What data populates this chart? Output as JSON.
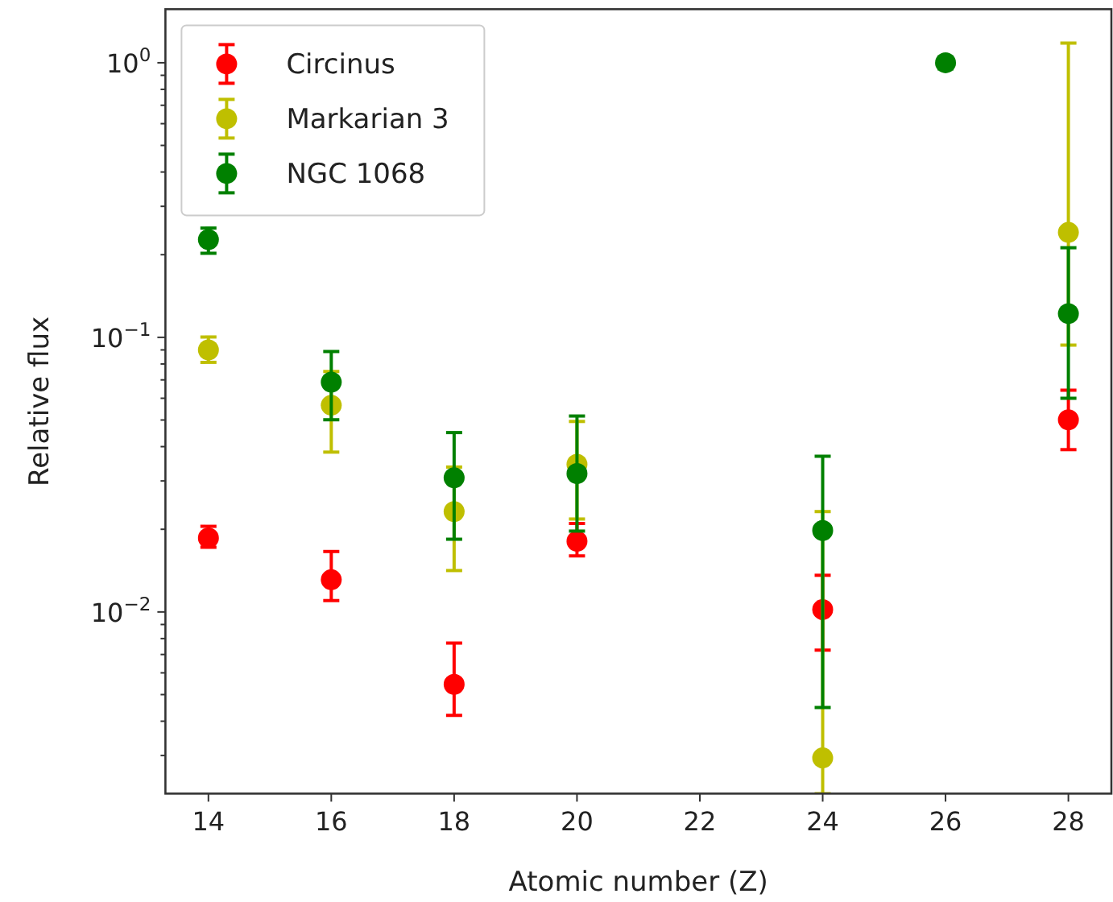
{
  "chart_data": {
    "type": "scatter",
    "xlabel": "Atomic number (Z)",
    "ylabel": "Relative flux",
    "x": [
      14,
      16,
      18,
      20,
      24,
      26,
      28
    ],
    "series": [
      {
        "name": "Circinus",
        "color": "#ff0000",
        "values": [
          0.0186,
          0.0131,
          0.00545,
          0.0181,
          0.0102,
          null,
          0.0501
        ],
        "errors": [
          [
            0.0172,
            0.0205
          ],
          [
            0.011,
            0.0166
          ],
          [
            0.0042,
            0.0077
          ],
          [
            0.016,
            0.021
          ],
          [
            0.00726,
            0.0136
          ],
          null,
          [
            0.039,
            0.0642
          ]
        ]
      },
      {
        "name": "Markarian 3",
        "color": "#bfbf00",
        "values": [
          0.09,
          0.0566,
          0.0232,
          0.0345,
          0.00294,
          null,
          0.241
        ],
        "errors": [
          [
            0.0811,
            0.1003
          ],
          [
            0.0382,
            0.0751
          ],
          [
            0.01415,
            0.0337
          ],
          [
            0.0218,
            0.0494
          ],
          [
            0.00218,
            0.0232
          ],
          null,
          [
            0.0937,
            1.18
          ]
        ]
      },
      {
        "name": "NGC 1068",
        "color": "#008000",
        "values": [
          0.227,
          0.0687,
          0.0308,
          0.0319,
          0.0198,
          1.0,
          0.122
        ],
        "errors": [
          [
            0.2024,
            0.25
          ],
          [
            0.0501,
            0.0888
          ],
          [
            0.0184,
            0.045
          ],
          [
            0.0197,
            0.0517
          ],
          [
            0.00449,
            0.0369
          ],
          [
            0.95,
            1.05
          ],
          [
            0.06,
            0.212
          ]
        ]
      }
    ],
    "xlim": [
      13.3,
      28.7
    ],
    "xticks": [
      14,
      16,
      18,
      20,
      22,
      24,
      26,
      28
    ],
    "log": "y",
    "ylim": [
      0.00218,
      1.567
    ],
    "yticks": [
      {
        "value": 0.003,
        "label": null
      },
      {
        "value": 0.004,
        "label": null
      },
      {
        "value": 0.005,
        "label": null
      },
      {
        "value": 0.006,
        "label": null
      },
      {
        "value": 0.007,
        "label": null
      },
      {
        "value": 0.008,
        "label": null
      },
      {
        "value": 0.009,
        "label": null
      },
      {
        "value": 0.01,
        "label": "10$^{−2}$"
      },
      {
        "value": 0.02,
        "label": null
      },
      {
        "value": 0.03,
        "label": null
      },
      {
        "value": 0.04,
        "label": null
      },
      {
        "value": 0.05,
        "label": null
      },
      {
        "value": 0.06,
        "label": null
      },
      {
        "value": 0.07,
        "label": null
      },
      {
        "value": 0.08,
        "label": null
      },
      {
        "value": 0.09,
        "label": null
      },
      {
        "value": 0.1,
        "label": "10$^{−1}$"
      },
      {
        "value": 0.2,
        "label": null
      },
      {
        "value": 0.3,
        "label": null
      },
      {
        "value": 0.4,
        "label": null
      },
      {
        "value": 0.5,
        "label": null
      },
      {
        "value": 0.6,
        "label": null
      },
      {
        "value": 0.7,
        "label": null
      },
      {
        "value": 0.8,
        "label": null
      },
      {
        "value": 0.9,
        "label": null
      },
      {
        "value": 1,
        "label": "10$^{0}$"
      }
    ],
    "legend": "top left",
    "marker": "circle",
    "grid": false
  }
}
